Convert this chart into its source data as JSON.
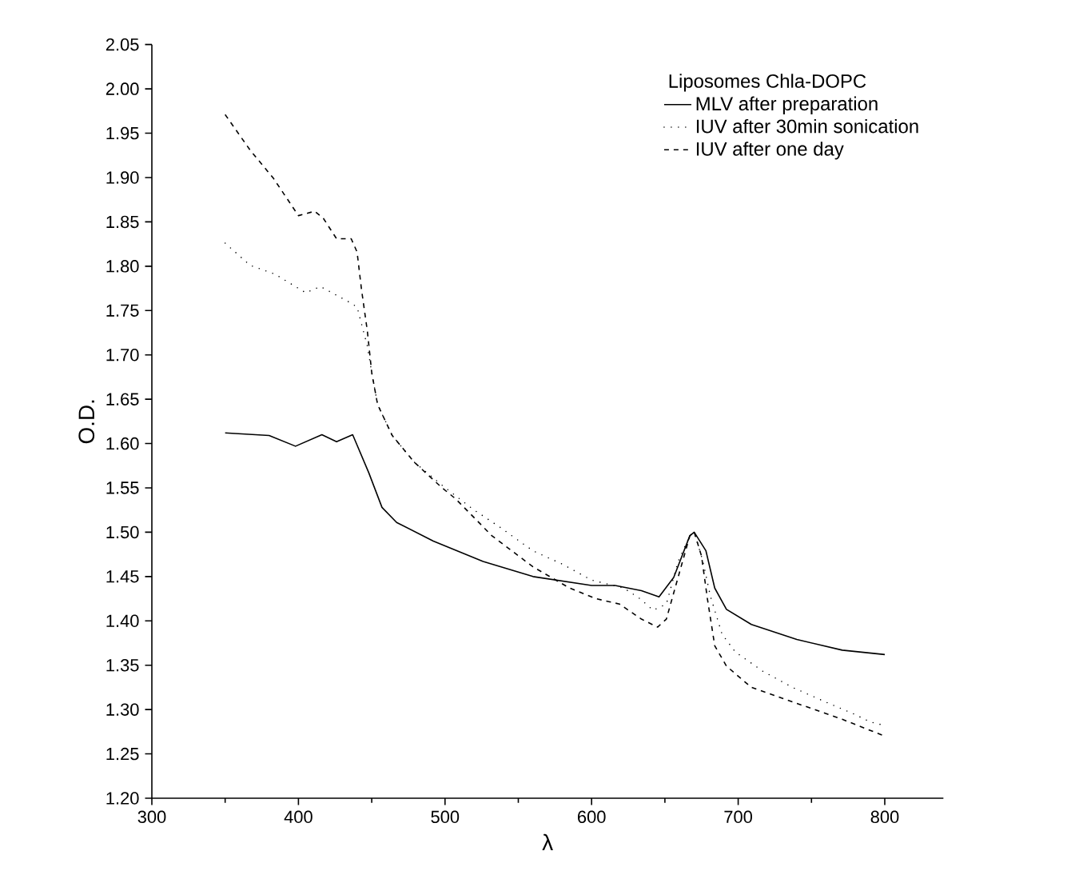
{
  "chart_data": {
    "type": "line",
    "xlabel": "λ",
    "ylabel": "O.D.",
    "legend_title": "Liposomes Chla-DOPC",
    "legend": "top right",
    "grid": false,
    "xlim": [
      300,
      840
    ],
    "xticks": [
      300,
      400,
      500,
      600,
      700,
      800
    ],
    "ylim": [
      1.2,
      2.05
    ],
    "yticks": [
      {
        "value": 1.2,
        "label": "1.20"
      },
      {
        "value": 1.25,
        "label": "1.25"
      },
      {
        "value": 1.3,
        "label": "1.30"
      },
      {
        "value": 1.35,
        "label": "1.35"
      },
      {
        "value": 1.4,
        "label": "1.40"
      },
      {
        "value": 1.45,
        "label": "1.45"
      },
      {
        "value": 1.5,
        "label": "1.50"
      },
      {
        "value": 1.55,
        "label": "1.55"
      },
      {
        "value": 1.6,
        "label": "1.60"
      },
      {
        "value": 1.65,
        "label": "1.65"
      },
      {
        "value": 1.7,
        "label": "1.70"
      },
      {
        "value": 1.75,
        "label": "1.75"
      },
      {
        "value": 1.8,
        "label": "1.80"
      },
      {
        "value": 1.85,
        "label": "1.85"
      },
      {
        "value": 1.9,
        "label": "1.90"
      },
      {
        "value": 1.95,
        "label": "1.95"
      },
      {
        "value": 2.0,
        "label": "2.00"
      },
      {
        "value": 2.05,
        "label": "2.05"
      }
    ],
    "series": [
      {
        "name": "MLV after preparation",
        "color": "#000000",
        "line_style": "solid",
        "x": [
          350,
          380,
          398,
          416,
          426,
          437,
          448,
          457,
          467,
          492,
          526,
          560,
          600,
          616,
          634,
          646,
          656,
          667,
          670,
          678,
          684,
          692,
          709,
          740,
          771,
          800
        ],
        "values": [
          1.612,
          1.609,
          1.597,
          1.61,
          1.602,
          1.61,
          1.567,
          1.528,
          1.511,
          1.49,
          1.467,
          1.45,
          1.44,
          1.44,
          1.434,
          1.427,
          1.449,
          1.496,
          1.5,
          1.479,
          1.437,
          1.413,
          1.396,
          1.379,
          1.367,
          1.362
        ]
      },
      {
        "name": "IUV after 30min sonication",
        "color": "#000000",
        "line_style": "dotted",
        "x": [
          350,
          367,
          384,
          405,
          415,
          433,
          440,
          443,
          447,
          450,
          454,
          464,
          479,
          498,
          519,
          538,
          560,
          580,
          600,
          622,
          633,
          642,
          651,
          659,
          667,
          670,
          676,
          681,
          689,
          698,
          717,
          737,
          759,
          779,
          790,
          800
        ],
        "values": [
          1.826,
          1.801,
          1.791,
          1.77,
          1.777,
          1.761,
          1.754,
          1.735,
          1.71,
          1.68,
          1.644,
          1.609,
          1.579,
          1.553,
          1.526,
          1.505,
          1.479,
          1.464,
          1.446,
          1.437,
          1.425,
          1.412,
          1.419,
          1.467,
          1.496,
          1.5,
          1.467,
          1.428,
          1.385,
          1.365,
          1.343,
          1.325,
          1.309,
          1.295,
          1.286,
          1.282
        ]
      },
      {
        "name": "IUV after one day",
        "color": "#000000",
        "line_style": "dashed",
        "x": [
          350,
          367,
          383,
          400,
          411,
          417,
          426,
          436,
          440,
          443,
          447,
          450,
          454,
          464,
          479,
          498,
          507,
          532,
          560,
          585,
          603,
          619,
          634,
          645,
          651,
          659,
          667,
          670,
          675,
          679,
          684,
          692,
          709,
          740,
          771,
          800
        ],
        "values": [
          1.971,
          1.931,
          1.899,
          1.857,
          1.862,
          1.854,
          1.831,
          1.831,
          1.816,
          1.774,
          1.727,
          1.68,
          1.644,
          1.609,
          1.579,
          1.55,
          1.538,
          1.496,
          1.461,
          1.437,
          1.425,
          1.419,
          1.402,
          1.393,
          1.402,
          1.449,
          1.496,
          1.5,
          1.473,
          1.425,
          1.372,
          1.349,
          1.325,
          1.307,
          1.289,
          1.27
        ]
      }
    ]
  }
}
